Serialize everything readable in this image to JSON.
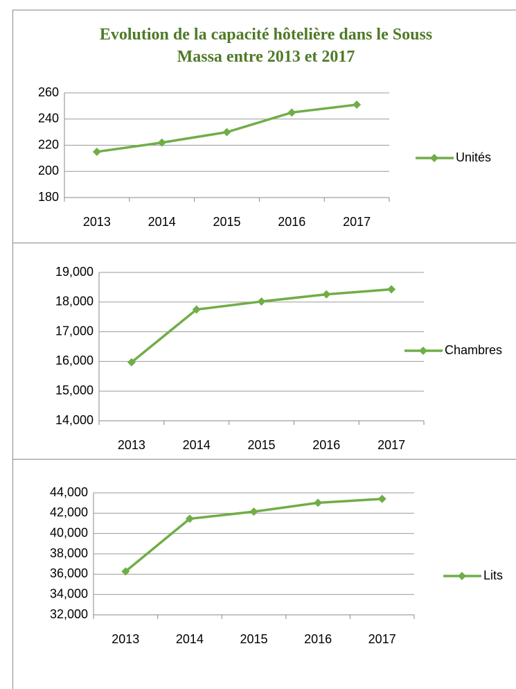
{
  "chart_data": [
    {
      "type": "line",
      "title": "Evolution de la capacité hôtelière dans le Souss Massa entre 2013 et 2017",
      "categories": [
        "2013",
        "2014",
        "2015",
        "2016",
        "2017"
      ],
      "series": [
        {
          "name": "Unités",
          "color": "#70ad47",
          "values": [
            215,
            222,
            230,
            245,
            251
          ]
        }
      ],
      "ylim": [
        180,
        260
      ],
      "yticks": [
        180,
        200,
        220,
        240,
        260
      ],
      "grid": true
    },
    {
      "type": "line",
      "categories": [
        "2013",
        "2014",
        "2015",
        "2016",
        "2017"
      ],
      "series": [
        {
          "name": "Chambres",
          "color": "#70ad47",
          "values": [
            15970,
            17750,
            18020,
            18260,
            18430
          ]
        }
      ],
      "ylim": [
        14000,
        19000
      ],
      "yticks": [
        {
          "value": 14000,
          "label": "14,000"
        },
        {
          "value": 15000,
          "label": "15,000"
        },
        {
          "value": 16000,
          "label": "16,000"
        },
        {
          "value": 17000,
          "label": "17,000"
        },
        {
          "value": 18000,
          "label": "18,000"
        },
        {
          "value": 19000,
          "label": "19,000"
        }
      ],
      "grid": true
    },
    {
      "type": "line",
      "categories": [
        "2013",
        "2014",
        "2015",
        "2016",
        "2017"
      ],
      "series": [
        {
          "name": "Lits",
          "color": "#70ad47",
          "values": [
            36270,
            41450,
            42150,
            43020,
            43400
          ]
        }
      ],
      "ylim": [
        32000,
        44000
      ],
      "yticks": [
        {
          "value": 32000,
          "label": "32,000"
        },
        {
          "value": 34000,
          "label": "34,000"
        },
        {
          "value": 36000,
          "label": "36,000"
        },
        {
          "value": 38000,
          "label": "38,000"
        },
        {
          "value": 40000,
          "label": "40,000"
        },
        {
          "value": 42000,
          "label": "42,000"
        },
        {
          "value": 44000,
          "label": "44,000"
        }
      ],
      "grid": true
    }
  ]
}
